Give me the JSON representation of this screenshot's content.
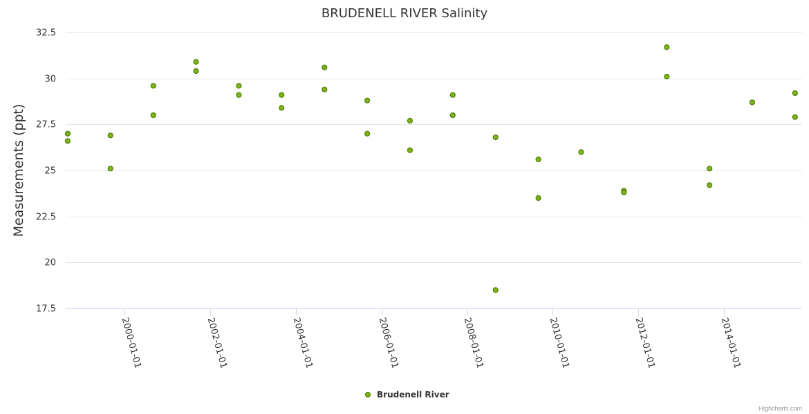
{
  "chart_data": {
    "type": "scatter",
    "title": "BRUDENELL RIVER Salinity",
    "ylabel": "Measurements (ppt)",
    "xlabel": "",
    "ylim": [
      17.5,
      32.5
    ],
    "yticks": [
      17.5,
      20,
      22.5,
      25,
      27.5,
      30,
      32.5
    ],
    "y_tick_labels": [
      "17.5",
      "20",
      "22.5",
      "25",
      "27.5",
      "30",
      "32.5"
    ],
    "xlim": [
      "1998-08-15",
      "2015-10-31"
    ],
    "xticks": [
      "2000-01-01",
      "2002-01-01",
      "2004-01-01",
      "2006-01-01",
      "2008-01-01",
      "2010-01-01",
      "2012-01-01",
      "2014-01-01"
    ],
    "grid": true,
    "legend_position": "bottom-center",
    "series": [
      {
        "name": "Brudenell River",
        "color": "#7cb518",
        "edge_color": "#4f7c06",
        "points": [
          {
            "x": "1998-09-01",
            "y": 27.0
          },
          {
            "x": "1998-09-01",
            "y": 26.6
          },
          {
            "x": "1999-09-01",
            "y": 26.9
          },
          {
            "x": "1999-09-01",
            "y": 25.1
          },
          {
            "x": "2000-09-01",
            "y": 29.6
          },
          {
            "x": "2000-09-01",
            "y": 28.0
          },
          {
            "x": "2001-09-01",
            "y": 30.9
          },
          {
            "x": "2001-09-01",
            "y": 30.4
          },
          {
            "x": "2002-09-01",
            "y": 29.6
          },
          {
            "x": "2002-09-01",
            "y": 29.1
          },
          {
            "x": "2003-09-01",
            "y": 29.1
          },
          {
            "x": "2003-09-01",
            "y": 28.4
          },
          {
            "x": "2004-09-01",
            "y": 30.6
          },
          {
            "x": "2004-09-01",
            "y": 29.4
          },
          {
            "x": "2005-09-01",
            "y": 28.8
          },
          {
            "x": "2005-09-01",
            "y": 27.0
          },
          {
            "x": "2006-09-01",
            "y": 27.7
          },
          {
            "x": "2006-09-01",
            "y": 26.1
          },
          {
            "x": "2007-09-01",
            "y": 29.1
          },
          {
            "x": "2007-09-01",
            "y": 28.0
          },
          {
            "x": "2008-09-01",
            "y": 26.8
          },
          {
            "x": "2008-09-01",
            "y": 18.5
          },
          {
            "x": "2009-09-01",
            "y": 25.6
          },
          {
            "x": "2009-09-01",
            "y": 23.5
          },
          {
            "x": "2010-09-01",
            "y": 26.0
          },
          {
            "x": "2011-09-01",
            "y": 23.9
          },
          {
            "x": "2011-09-01",
            "y": 23.8
          },
          {
            "x": "2012-09-01",
            "y": 31.7
          },
          {
            "x": "2012-09-01",
            "y": 30.1
          },
          {
            "x": "2013-09-01",
            "y": 25.1
          },
          {
            "x": "2013-09-01",
            "y": 24.2
          },
          {
            "x": "2014-09-01",
            "y": 28.7
          },
          {
            "x": "2015-09-01",
            "y": 29.2
          },
          {
            "x": "2015-09-01",
            "y": 27.9
          }
        ]
      }
    ]
  },
  "credits": "Highcharts.com"
}
